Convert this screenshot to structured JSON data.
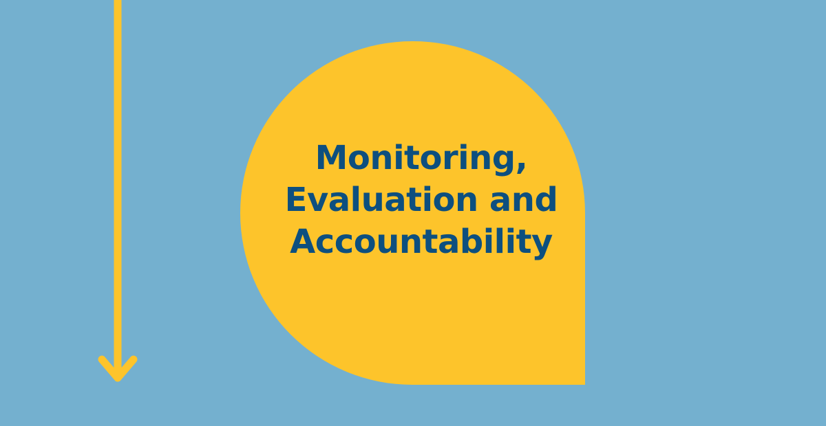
{
  "title": {
    "lines": [
      "Monitoring,",
      "Evaluation and",
      "Accountability"
    ]
  },
  "colors": {
    "background": "#74b0cf",
    "shape": "#fdc42b",
    "arrow": "#fdc42b",
    "text": "#0d4f7f"
  },
  "icons": {
    "arrow": "arrow-down-icon"
  }
}
